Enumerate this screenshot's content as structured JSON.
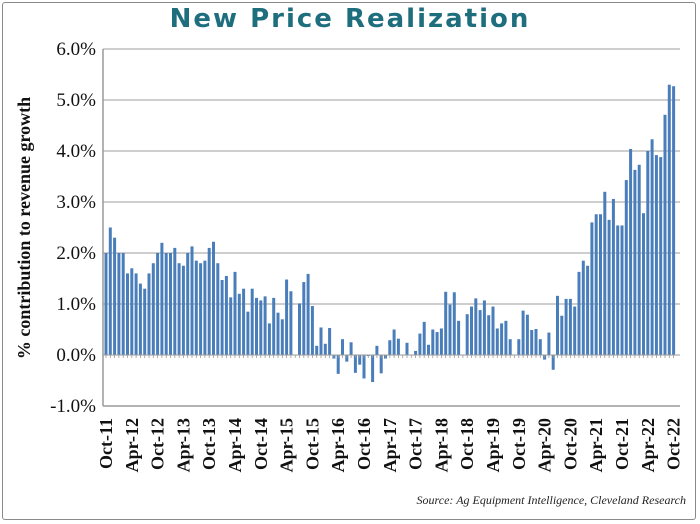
{
  "chart_data": {
    "type": "bar",
    "title": "New Price Realization",
    "ylabel": "% contribution to revenue growth",
    "xlabel": "",
    "source": "Source: Ag Equipment Intelligence, Cleveland Research",
    "ylim": [
      -1.0,
      6.0
    ],
    "yticks": [
      "-1.0%",
      "0.0%",
      "1.0%",
      "2.0%",
      "3.0%",
      "4.0%",
      "5.0%",
      "6.0%"
    ],
    "xtick_labels": [
      "Oct-11",
      "Apr-12",
      "Oct-12",
      "Apr-13",
      "Oct-13",
      "Apr-14",
      "Oct-14",
      "Apr-15",
      "Oct-15",
      "Apr-16",
      "Oct-16",
      "Apr-17",
      "Oct-17",
      "Apr-18",
      "Oct-18",
      "Apr-19",
      "Oct-19",
      "Apr-20",
      "Oct-20",
      "Apr-21",
      "Oct-21",
      "Apr-22",
      "Oct-22"
    ],
    "x_start": "Oct-11",
    "x_end": "Oct-22",
    "frequency": "monthly",
    "grid": true,
    "bar_color": "#4a7ebb",
    "title_color": "#1e6e7e",
    "values": [
      2.0,
      2.5,
      2.3,
      2.0,
      2.0,
      1.6,
      1.7,
      1.6,
      1.4,
      1.3,
      1.6,
      1.8,
      2.0,
      2.2,
      2.0,
      2.0,
      2.1,
      1.8,
      1.75,
      2.0,
      2.13,
      1.85,
      1.8,
      1.85,
      2.1,
      2.22,
      1.8,
      1.47,
      1.55,
      1.13,
      1.63,
      1.2,
      1.3,
      0.85,
      1.3,
      1.12,
      1.07,
      1.15,
      0.62,
      1.12,
      0.83,
      0.7,
      1.48,
      1.25,
      0,
      1.01,
      1.43,
      1.59,
      0.96,
      0.18,
      0.54,
      0.22,
      0.53,
      -0.07,
      -0.37,
      0.31,
      -0.13,
      0.25,
      -0.35,
      -0.19,
      -0.46,
      -0.02,
      -0.53,
      0.18,
      -0.36,
      -0.07,
      0.29,
      0.5,
      0.32,
      0,
      0.24,
      0,
      0.08,
      0.42,
      0.65,
      0.2,
      0.5,
      0.45,
      0.52,
      1.24,
      0.99,
      1.23,
      0.67,
      0,
      0.8,
      0.95,
      1.11,
      0.88,
      1.07,
      0.78,
      0.95,
      0.52,
      0.62,
      0.67,
      0.31,
      0,
      0.31,
      0.87,
      0.79,
      0.49,
      0.51,
      0.31,
      -0.09,
      0.44,
      -0.29,
      1.16,
      0.77,
      1.1,
      1.1,
      0.95,
      1.63,
      1.85,
      1.75,
      2.6,
      2.76,
      2.76,
      3.2,
      2.65,
      3.06,
      2.54,
      2.54,
      3.43,
      4.04,
      3.63,
      3.73,
      2.78,
      4.0,
      4.23,
      3.92,
      3.88,
      4.71,
      5.3,
      5.27
    ]
  }
}
